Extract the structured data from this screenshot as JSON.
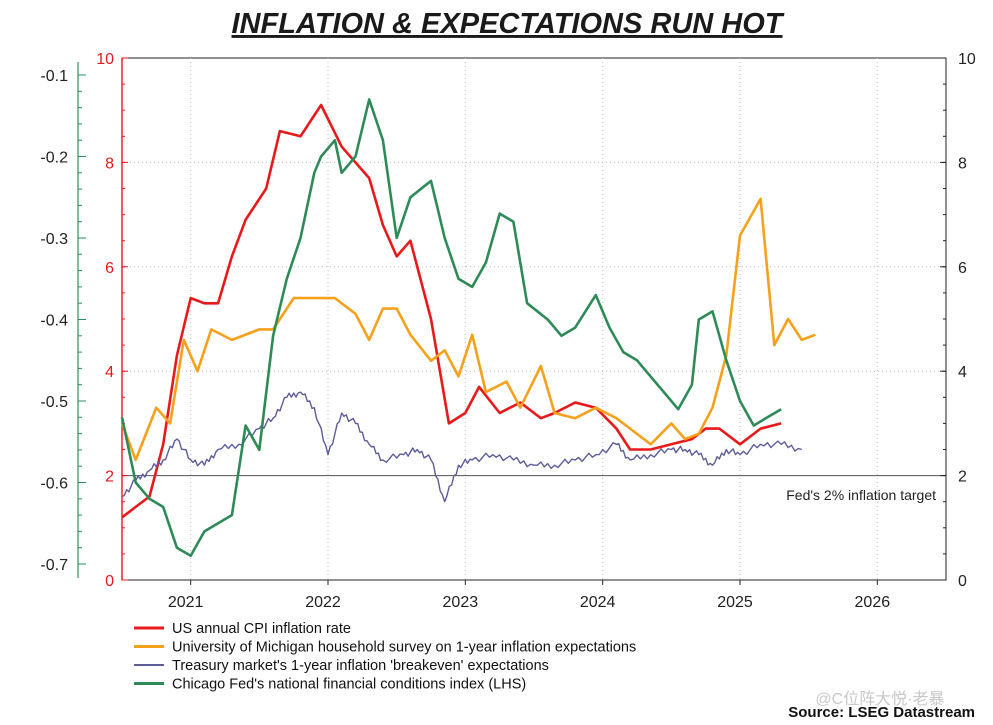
{
  "chart_data": {
    "type": "line",
    "title": "INFLATION & EXPECTATIONS RUN HOT",
    "x_ticks": [
      "2021",
      "2022",
      "2023",
      "2024",
      "2025",
      "2026"
    ],
    "xlim": [
      2020.5,
      2026.5
    ],
    "left_axis": {
      "label": "Chicago Fed's national financial conditions index (LHS)",
      "ticks": [
        "-0.1",
        "-0.2",
        "-0.3",
        "-0.4",
        "-0.5",
        "-0.6",
        "-0.7"
      ],
      "range": [
        -0.7,
        -0.1
      ],
      "color": "#2e8b57"
    },
    "inner_left_axis": {
      "ticks": [
        "0",
        "2",
        "4",
        "6",
        "8",
        "10"
      ],
      "range": [
        0,
        10
      ],
      "color": "#e8191b"
    },
    "right_axis": {
      "ticks": [
        "0",
        "2",
        "4",
        "6",
        "8",
        "10"
      ],
      "range": [
        0,
        10
      ],
      "color": "#333333"
    },
    "reference_line": {
      "value": 2,
      "label": "Fed's 2% inflation target"
    },
    "series": [
      {
        "name": "US annual CPI inflation rate",
        "color": "#e8191b",
        "axis": "inner_left",
        "points": [
          [
            2020.5,
            1.2
          ],
          [
            2020.6,
            1.4
          ],
          [
            2020.7,
            1.6
          ],
          [
            2020.8,
            2.6
          ],
          [
            2020.9,
            4.3
          ],
          [
            2021.0,
            5.4
          ],
          [
            2021.1,
            5.3
          ],
          [
            2021.2,
            5.3
          ],
          [
            2021.3,
            6.2
          ],
          [
            2021.4,
            6.9
          ],
          [
            2021.55,
            7.5
          ],
          [
            2021.65,
            8.6
          ],
          [
            2021.8,
            8.5
          ],
          [
            2021.95,
            9.1
          ],
          [
            2022.1,
            8.3
          ],
          [
            2022.3,
            7.7
          ],
          [
            2022.4,
            6.8
          ],
          [
            2022.5,
            6.2
          ],
          [
            2022.6,
            6.5
          ],
          [
            2022.75,
            5.0
          ],
          [
            2022.88,
            3.0
          ],
          [
            2023.0,
            3.2
          ],
          [
            2023.1,
            3.7
          ],
          [
            2023.25,
            3.2
          ],
          [
            2023.4,
            3.4
          ],
          [
            2023.55,
            3.1
          ],
          [
            2023.65,
            3.2
          ],
          [
            2023.8,
            3.4
          ],
          [
            2023.95,
            3.3
          ],
          [
            2024.1,
            2.9
          ],
          [
            2024.2,
            2.5
          ],
          [
            2024.35,
            2.5
          ],
          [
            2024.5,
            2.6
          ],
          [
            2024.65,
            2.7
          ],
          [
            2024.75,
            2.9
          ],
          [
            2024.85,
            2.9
          ],
          [
            2025.0,
            2.6
          ],
          [
            2025.15,
            2.9
          ],
          [
            2025.3,
            3.0
          ]
        ]
      },
      {
        "name": "University of Michigan household survey on 1-year inflation expectations",
        "color": "#f5a11c",
        "axis": "inner_left",
        "points": [
          [
            2020.5,
            3.0
          ],
          [
            2020.6,
            2.3
          ],
          [
            2020.75,
            3.3
          ],
          [
            2020.85,
            3.0
          ],
          [
            2020.95,
            4.6
          ],
          [
            2021.05,
            4.0
          ],
          [
            2021.15,
            4.8
          ],
          [
            2021.3,
            4.6
          ],
          [
            2021.5,
            4.8
          ],
          [
            2021.6,
            4.8
          ],
          [
            2021.75,
            5.4
          ],
          [
            2021.85,
            5.4
          ],
          [
            2021.95,
            5.4
          ],
          [
            2022.05,
            5.4
          ],
          [
            2022.2,
            5.1
          ],
          [
            2022.3,
            4.6
          ],
          [
            2022.4,
            5.2
          ],
          [
            2022.5,
            5.2
          ],
          [
            2022.6,
            4.7
          ],
          [
            2022.75,
            4.2
          ],
          [
            2022.85,
            4.4
          ],
          [
            2022.95,
            3.9
          ],
          [
            2023.05,
            4.7
          ],
          [
            2023.15,
            3.6
          ],
          [
            2023.3,
            3.8
          ],
          [
            2023.4,
            3.3
          ],
          [
            2023.55,
            4.1
          ],
          [
            2023.65,
            3.2
          ],
          [
            2023.8,
            3.1
          ],
          [
            2023.95,
            3.3
          ],
          [
            2024.1,
            3.1
          ],
          [
            2024.2,
            2.9
          ],
          [
            2024.35,
            2.6
          ],
          [
            2024.5,
            3.0
          ],
          [
            2024.6,
            2.7
          ],
          [
            2024.7,
            2.8
          ],
          [
            2024.8,
            3.3
          ],
          [
            2024.9,
            4.3
          ],
          [
            2025.0,
            6.6
          ],
          [
            2025.15,
            7.3
          ],
          [
            2025.25,
            4.5
          ],
          [
            2025.35,
            5.0
          ],
          [
            2025.45,
            4.6
          ],
          [
            2025.55,
            4.7
          ]
        ]
      },
      {
        "name": "Treasury market's 1-year inflation 'breakeven' expectations",
        "color": "#5c5c9a",
        "axis": "inner_left",
        "points": [
          [
            2020.5,
            1.6
          ],
          [
            2020.6,
            1.9
          ],
          [
            2020.7,
            2.1
          ],
          [
            2020.8,
            2.3
          ],
          [
            2020.9,
            2.7
          ],
          [
            2021.0,
            2.3
          ],
          [
            2021.1,
            2.2
          ],
          [
            2021.2,
            2.5
          ],
          [
            2021.35,
            2.6
          ],
          [
            2021.5,
            2.9
          ],
          [
            2021.6,
            3.1
          ],
          [
            2021.7,
            3.5
          ],
          [
            2021.8,
            3.6
          ],
          [
            2021.9,
            3.3
          ],
          [
            2022.0,
            2.4
          ],
          [
            2022.1,
            3.2
          ],
          [
            2022.2,
            3.0
          ],
          [
            2022.3,
            2.6
          ],
          [
            2022.4,
            2.3
          ],
          [
            2022.55,
            2.4
          ],
          [
            2022.65,
            2.5
          ],
          [
            2022.75,
            2.3
          ],
          [
            2022.85,
            1.5
          ],
          [
            2022.95,
            2.2
          ],
          [
            2023.05,
            2.3
          ],
          [
            2023.2,
            2.4
          ],
          [
            2023.35,
            2.3
          ],
          [
            2023.5,
            2.2
          ],
          [
            2023.65,
            2.2
          ],
          [
            2023.8,
            2.3
          ],
          [
            2023.95,
            2.4
          ],
          [
            2024.1,
            2.6
          ],
          [
            2024.2,
            2.3
          ],
          [
            2024.35,
            2.4
          ],
          [
            2024.5,
            2.5
          ],
          [
            2024.6,
            2.5
          ],
          [
            2024.7,
            2.4
          ],
          [
            2024.8,
            2.2
          ],
          [
            2024.9,
            2.5
          ],
          [
            2025.0,
            2.4
          ],
          [
            2025.15,
            2.6
          ],
          [
            2025.3,
            2.6
          ],
          [
            2025.45,
            2.5
          ]
        ]
      },
      {
        "name": "Chicago Fed's national financial conditions index (LHS)",
        "color": "#2e8b57",
        "axis": "left",
        "points": [
          [
            2020.5,
            -0.52
          ],
          [
            2020.6,
            -0.6
          ],
          [
            2020.7,
            -0.62
          ],
          [
            2020.8,
            -0.63
          ],
          [
            2020.9,
            -0.68
          ],
          [
            2021.0,
            -0.69
          ],
          [
            2021.1,
            -0.66
          ],
          [
            2021.2,
            -0.65
          ],
          [
            2021.3,
            -0.64
          ],
          [
            2021.4,
            -0.53
          ],
          [
            2021.5,
            -0.56
          ],
          [
            2021.6,
            -0.42
          ],
          [
            2021.7,
            -0.35
          ],
          [
            2021.8,
            -0.3
          ],
          [
            2021.9,
            -0.22
          ],
          [
            2021.95,
            -0.2
          ],
          [
            2022.05,
            -0.18
          ],
          [
            2022.1,
            -0.22
          ],
          [
            2022.2,
            -0.2
          ],
          [
            2022.3,
            -0.13
          ],
          [
            2022.4,
            -0.18
          ],
          [
            2022.5,
            -0.3
          ],
          [
            2022.6,
            -0.25
          ],
          [
            2022.75,
            -0.23
          ],
          [
            2022.85,
            -0.3
          ],
          [
            2022.95,
            -0.35
          ],
          [
            2023.05,
            -0.36
          ],
          [
            2023.15,
            -0.33
          ],
          [
            2023.25,
            -0.27
          ],
          [
            2023.35,
            -0.28
          ],
          [
            2023.45,
            -0.38
          ],
          [
            2023.6,
            -0.4
          ],
          [
            2023.7,
            -0.42
          ],
          [
            2023.8,
            -0.41
          ],
          [
            2023.95,
            -0.37
          ],
          [
            2024.05,
            -0.41
          ],
          [
            2024.15,
            -0.44
          ],
          [
            2024.25,
            -0.45
          ],
          [
            2024.35,
            -0.47
          ],
          [
            2024.45,
            -0.49
          ],
          [
            2024.55,
            -0.51
          ],
          [
            2024.65,
            -0.48
          ],
          [
            2024.7,
            -0.4
          ],
          [
            2024.8,
            -0.39
          ],
          [
            2024.9,
            -0.45
          ],
          [
            2025.0,
            -0.5
          ],
          [
            2025.1,
            -0.53
          ],
          [
            2025.2,
            -0.52
          ],
          [
            2025.3,
            -0.51
          ]
        ]
      }
    ]
  },
  "source": "Source: LSEG Datastream",
  "watermark": "@C位阵大悦·老暴"
}
